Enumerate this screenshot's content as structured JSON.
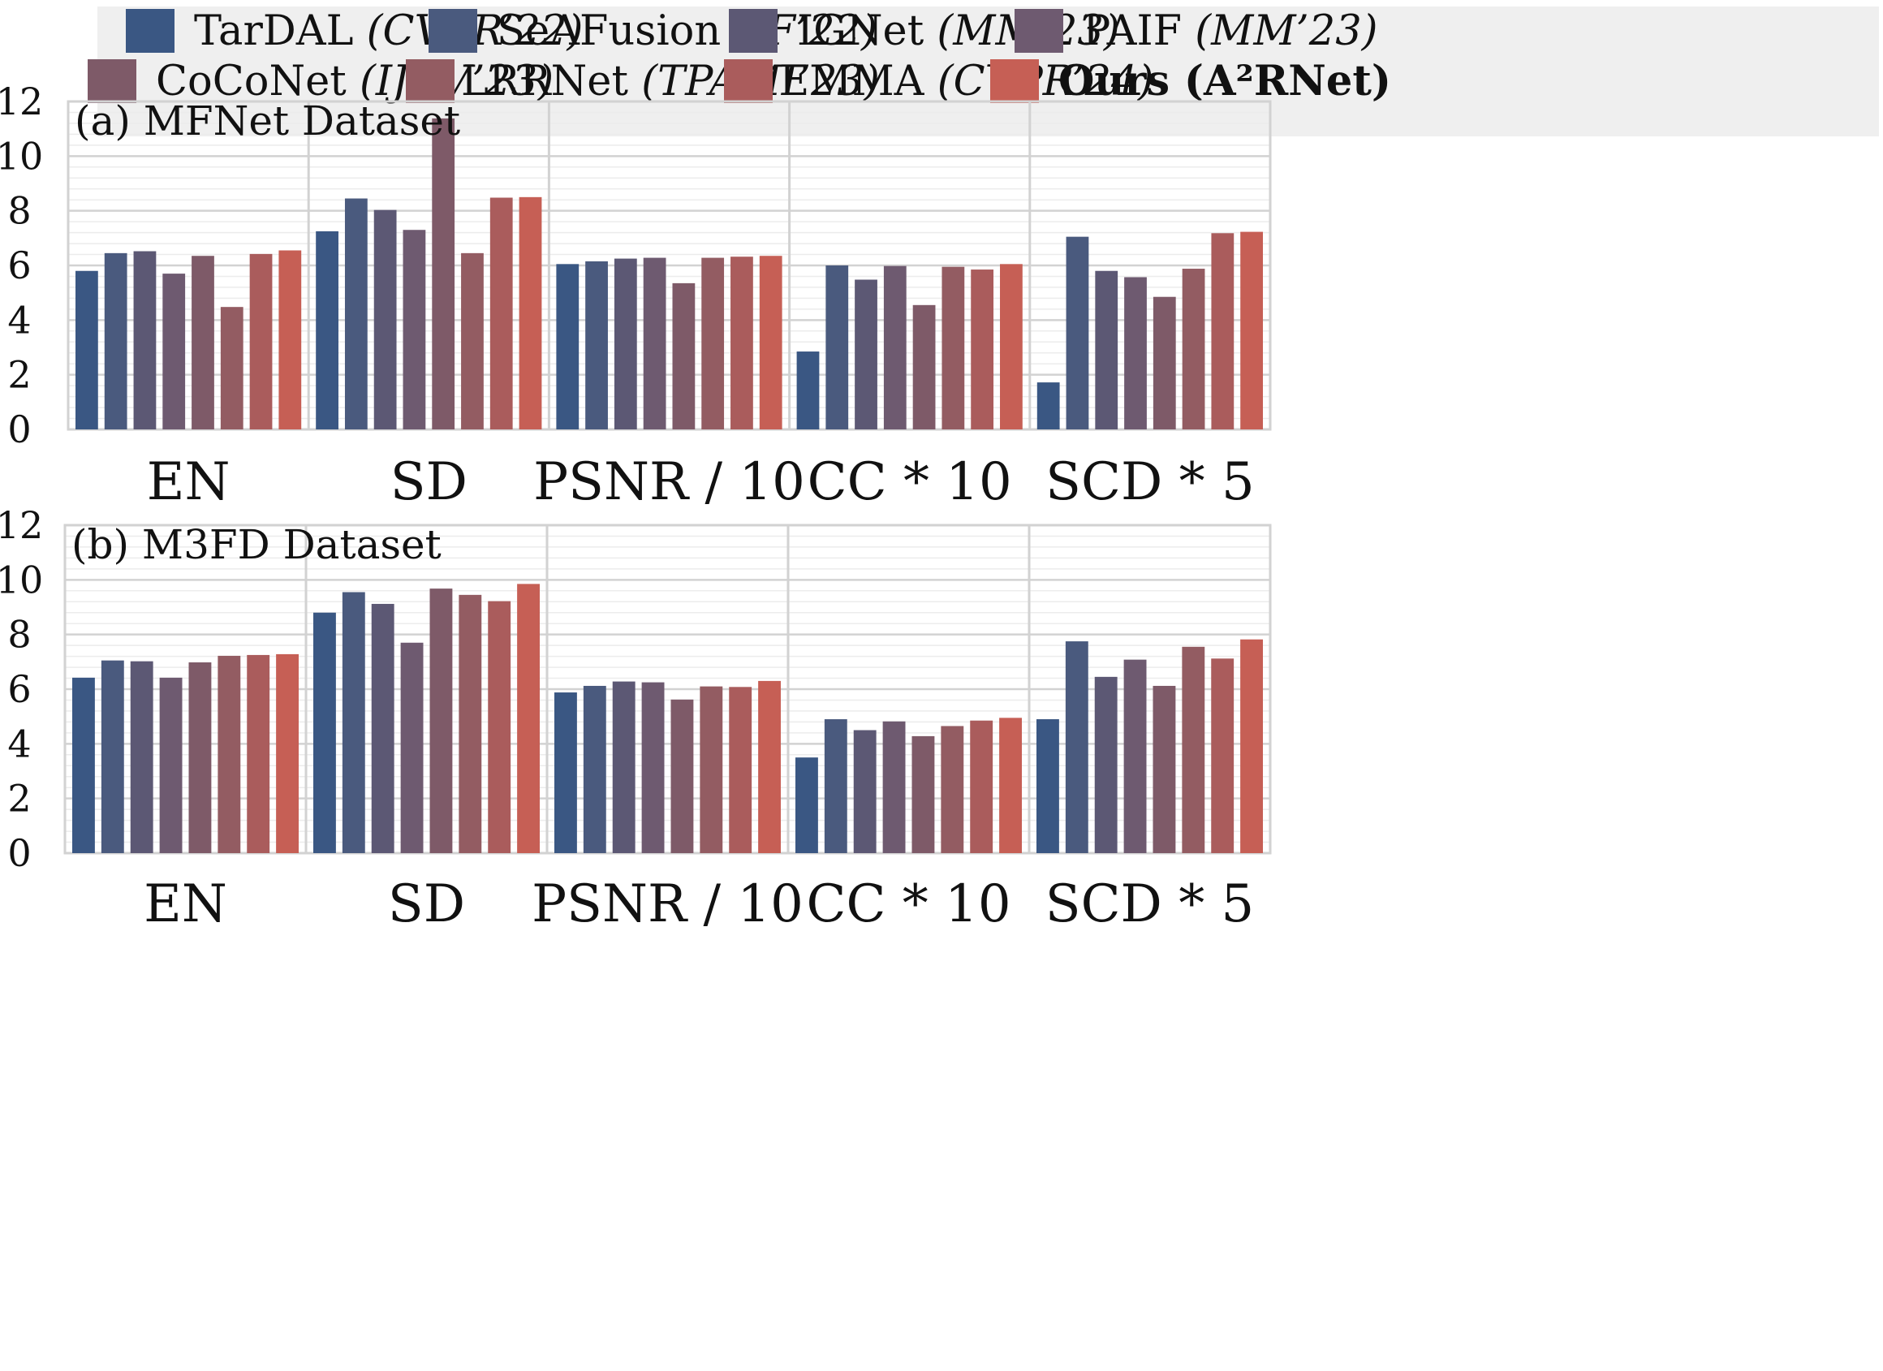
{
  "legend": [
    {
      "name": "TarDAL",
      "venue": "(CVPR’22)",
      "color": "#3a5783",
      "bold": false
    },
    {
      "name": "SeAFusion",
      "venue": "(IF’22)",
      "color": "#4a5a7e",
      "bold": false
    },
    {
      "name": "IGNet",
      "venue": "(MM’23)",
      "color": "#5c5874",
      "bold": false
    },
    {
      "name": "PAIF",
      "venue": "(MM’23)",
      "color": "#6e5a70",
      "bold": false
    },
    {
      "name": "CoCoNet",
      "venue": "(IJCV’23)",
      "color": "#7e5a68",
      "bold": false
    },
    {
      "name": "LRRNet",
      "venue": "(TPAMI’23)",
      "color": "#935c62",
      "bold": false
    },
    {
      "name": "EMMA",
      "venue": "(CVPR’24)",
      "color": "#aa5c5c",
      "bold": false
    },
    {
      "name": "Ours (A²RNet)",
      "venue": "",
      "color": "#c65f55",
      "bold": true
    }
  ],
  "chart_data": [
    {
      "type": "bar",
      "title": "(a) MFNet Dataset",
      "categories": [
        "EN",
        "SD",
        "PSNR / 10",
        "CC * 10",
        "SCD * 5"
      ],
      "ylim": [
        0,
        12
      ],
      "yticks": [
        "0",
        "2",
        "4",
        "6",
        "8",
        "10",
        "12"
      ],
      "grid": true,
      "series": [
        {
          "name": "TarDAL",
          "values": [
            5.8,
            7.25,
            6.05,
            2.85,
            1.72
          ]
        },
        {
          "name": "SeAFusion",
          "values": [
            6.45,
            8.45,
            6.15,
            6.0,
            7.05
          ]
        },
        {
          "name": "IGNet",
          "values": [
            6.52,
            8.03,
            6.25,
            5.48,
            5.8
          ]
        },
        {
          "name": "PAIF",
          "values": [
            5.7,
            7.3,
            6.28,
            5.98,
            5.57
          ]
        },
        {
          "name": "CoCoNet",
          "values": [
            6.35,
            11.38,
            5.35,
            4.55,
            4.85
          ]
        },
        {
          "name": "LRRNet",
          "values": [
            4.48,
            6.45,
            6.28,
            5.95,
            5.88
          ]
        },
        {
          "name": "EMMA",
          "values": [
            6.42,
            8.48,
            6.32,
            5.85,
            7.18
          ]
        },
        {
          "name": "Ours (A²RNet)",
          "values": [
            6.55,
            8.5,
            6.35,
            6.05,
            7.23
          ]
        }
      ]
    },
    {
      "type": "bar",
      "title": "(b) M3FD Dataset",
      "categories": [
        "EN",
        "SD",
        "PSNR / 10",
        "CC * 10",
        "SCD * 5"
      ],
      "ylim": [
        0,
        12
      ],
      "yticks": [
        "0",
        "2",
        "4",
        "6",
        "8",
        "10",
        "12"
      ],
      "grid": true,
      "series": [
        {
          "name": "TarDAL",
          "values": [
            6.42,
            8.8,
            5.88,
            3.5,
            4.9
          ]
        },
        {
          "name": "SeAFusion",
          "values": [
            7.05,
            9.55,
            6.12,
            4.9,
            7.75
          ]
        },
        {
          "name": "IGNet",
          "values": [
            7.02,
            9.12,
            6.28,
            4.5,
            6.45
          ]
        },
        {
          "name": "PAIF",
          "values": [
            6.42,
            7.7,
            6.25,
            4.82,
            7.08
          ]
        },
        {
          "name": "CoCoNet",
          "values": [
            6.98,
            9.68,
            5.62,
            4.28,
            6.12
          ]
        },
        {
          "name": "LRRNet",
          "values": [
            7.22,
            9.45,
            6.1,
            4.65,
            7.55
          ]
        },
        {
          "name": "EMMA",
          "values": [
            7.25,
            9.22,
            6.08,
            4.85,
            7.12
          ]
        },
        {
          "name": "Ours (A²RNet)",
          "values": [
            7.28,
            9.85,
            6.3,
            4.95,
            7.82
          ]
        }
      ]
    }
  ]
}
